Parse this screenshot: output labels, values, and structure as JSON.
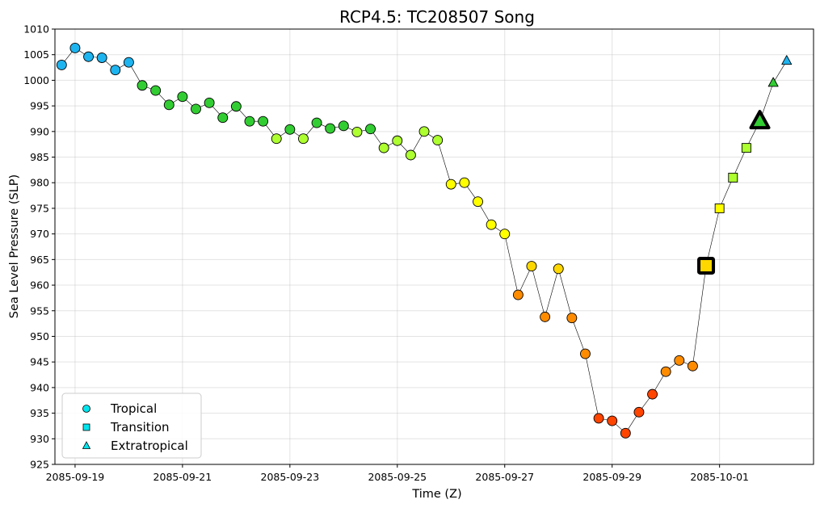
{
  "chart_data": {
    "type": "scatter",
    "title": "RCP4.5: TC208507 Song",
    "xlabel": "Time (Z)",
    "ylabel": "Sea Level Pressure (SLP)",
    "ylim": [
      925,
      1010
    ],
    "xlim": [
      "2085-09-18T15:00",
      "2085-10-02T18:00"
    ],
    "yticks": [
      925,
      930,
      935,
      940,
      945,
      950,
      955,
      960,
      965,
      970,
      975,
      980,
      985,
      990,
      995,
      1000,
      1005,
      1010
    ],
    "xticks": [
      "2085-09-19",
      "2085-09-21",
      "2085-09-23",
      "2085-09-25",
      "2085-09-27",
      "2085-09-29",
      "2085-10-01"
    ],
    "grid": true,
    "legend": {
      "placement": "bottom-left",
      "entries": [
        {
          "label": "Tropical",
          "marker": "circle",
          "color": "#00e5ee"
        },
        {
          "label": "Transition",
          "marker": "square",
          "color": "#00e5ee"
        },
        {
          "label": "Extratropical",
          "marker": "triangle",
          "color": "#00e5ee"
        }
      ]
    },
    "colors": {
      "blue": "#1eb4f0",
      "green": "#32cd32",
      "lightgreen": "#adff2f",
      "yellow": "#ffff00",
      "gold": "#ffd700",
      "orange": "#ff8c00",
      "redorange": "#ff4500"
    },
    "points": [
      {
        "t": "2085-09-18T18:00",
        "slp": 1003.0,
        "phase": "tropical",
        "color": "blue"
      },
      {
        "t": "2085-09-19T00:00",
        "slp": 1006.3,
        "phase": "tropical",
        "color": "blue"
      },
      {
        "t": "2085-09-19T06:00",
        "slp": 1004.6,
        "phase": "tropical",
        "color": "blue"
      },
      {
        "t": "2085-09-19T12:00",
        "slp": 1004.4,
        "phase": "tropical",
        "color": "blue"
      },
      {
        "t": "2085-09-19T18:00",
        "slp": 1002.0,
        "phase": "tropical",
        "color": "blue"
      },
      {
        "t": "2085-09-20T00:00",
        "slp": 1003.5,
        "phase": "tropical",
        "color": "blue"
      },
      {
        "t": "2085-09-20T06:00",
        "slp": 999.0,
        "phase": "tropical",
        "color": "green"
      },
      {
        "t": "2085-09-20T12:00",
        "slp": 998.0,
        "phase": "tropical",
        "color": "green"
      },
      {
        "t": "2085-09-20T18:00",
        "slp": 995.2,
        "phase": "tropical",
        "color": "green"
      },
      {
        "t": "2085-09-21T00:00",
        "slp": 996.8,
        "phase": "tropical",
        "color": "green"
      },
      {
        "t": "2085-09-21T06:00",
        "slp": 994.4,
        "phase": "tropical",
        "color": "green"
      },
      {
        "t": "2085-09-21T12:00",
        "slp": 995.6,
        "phase": "tropical",
        "color": "green"
      },
      {
        "t": "2085-09-21T18:00",
        "slp": 992.7,
        "phase": "tropical",
        "color": "green"
      },
      {
        "t": "2085-09-22T00:00",
        "slp": 994.9,
        "phase": "tropical",
        "color": "green"
      },
      {
        "t": "2085-09-22T06:00",
        "slp": 992.0,
        "phase": "tropical",
        "color": "green"
      },
      {
        "t": "2085-09-22T12:00",
        "slp": 992.0,
        "phase": "tropical",
        "color": "green"
      },
      {
        "t": "2085-09-22T18:00",
        "slp": 988.6,
        "phase": "tropical",
        "color": "lightgreen"
      },
      {
        "t": "2085-09-23T00:00",
        "slp": 990.4,
        "phase": "tropical",
        "color": "green"
      },
      {
        "t": "2085-09-23T06:00",
        "slp": 988.6,
        "phase": "tropical",
        "color": "lightgreen"
      },
      {
        "t": "2085-09-23T12:00",
        "slp": 991.7,
        "phase": "tropical",
        "color": "green"
      },
      {
        "t": "2085-09-23T18:00",
        "slp": 990.6,
        "phase": "tropical",
        "color": "green"
      },
      {
        "t": "2085-09-24T00:00",
        "slp": 991.1,
        "phase": "tropical",
        "color": "green"
      },
      {
        "t": "2085-09-24T06:00",
        "slp": 989.9,
        "phase": "tropical",
        "color": "lightgreen"
      },
      {
        "t": "2085-09-24T12:00",
        "slp": 990.5,
        "phase": "tropical",
        "color": "green"
      },
      {
        "t": "2085-09-24T18:00",
        "slp": 986.8,
        "phase": "tropical",
        "color": "lightgreen"
      },
      {
        "t": "2085-09-25T00:00",
        "slp": 988.2,
        "phase": "tropical",
        "color": "lightgreen"
      },
      {
        "t": "2085-09-25T06:00",
        "slp": 985.4,
        "phase": "tropical",
        "color": "lightgreen"
      },
      {
        "t": "2085-09-25T12:00",
        "slp": 990.0,
        "phase": "tropical",
        "color": "lightgreen"
      },
      {
        "t": "2085-09-25T18:00",
        "slp": 988.3,
        "phase": "tropical",
        "color": "lightgreen"
      },
      {
        "t": "2085-09-26T00:00",
        "slp": 979.7,
        "phase": "tropical",
        "color": "yellow"
      },
      {
        "t": "2085-09-26T06:00",
        "slp": 980.0,
        "phase": "tropical",
        "color": "yellow"
      },
      {
        "t": "2085-09-26T12:00",
        "slp": 976.3,
        "phase": "tropical",
        "color": "yellow"
      },
      {
        "t": "2085-09-26T18:00",
        "slp": 971.8,
        "phase": "tropical",
        "color": "yellow"
      },
      {
        "t": "2085-09-27T00:00",
        "slp": 970.0,
        "phase": "tropical",
        "color": "yellow"
      },
      {
        "t": "2085-09-27T06:00",
        "slp": 958.1,
        "phase": "tropical",
        "color": "orange"
      },
      {
        "t": "2085-09-27T12:00",
        "slp": 963.7,
        "phase": "tropical",
        "color": "gold"
      },
      {
        "t": "2085-09-27T18:00",
        "slp": 953.8,
        "phase": "tropical",
        "color": "orange"
      },
      {
        "t": "2085-09-28T00:00",
        "slp": 963.2,
        "phase": "tropical",
        "color": "gold"
      },
      {
        "t": "2085-09-28T06:00",
        "slp": 953.6,
        "phase": "tropical",
        "color": "orange"
      },
      {
        "t": "2085-09-28T12:00",
        "slp": 946.6,
        "phase": "tropical",
        "color": "orange"
      },
      {
        "t": "2085-09-28T18:00",
        "slp": 934.0,
        "phase": "tropical",
        "color": "redorange"
      },
      {
        "t": "2085-09-29T00:00",
        "slp": 933.5,
        "phase": "tropical",
        "color": "redorange"
      },
      {
        "t": "2085-09-29T06:00",
        "slp": 931.1,
        "phase": "tropical",
        "color": "redorange"
      },
      {
        "t": "2085-09-29T12:00",
        "slp": 935.2,
        "phase": "tropical",
        "color": "redorange"
      },
      {
        "t": "2085-09-29T18:00",
        "slp": 938.7,
        "phase": "tropical",
        "color": "redorange"
      },
      {
        "t": "2085-09-30T00:00",
        "slp": 943.1,
        "phase": "tropical",
        "color": "orange"
      },
      {
        "t": "2085-09-30T06:00",
        "slp": 945.3,
        "phase": "tropical",
        "color": "orange"
      },
      {
        "t": "2085-09-30T12:00",
        "slp": 944.2,
        "phase": "tropical",
        "color": "orange"
      },
      {
        "t": "2085-09-30T18:00",
        "slp": 963.8,
        "phase": "transition",
        "color": "gold",
        "highlight": true
      },
      {
        "t": "2085-10-01T00:00",
        "slp": 975.0,
        "phase": "transition",
        "color": "yellow"
      },
      {
        "t": "2085-10-01T06:00",
        "slp": 981.0,
        "phase": "transition",
        "color": "lightgreen"
      },
      {
        "t": "2085-10-01T12:00",
        "slp": 986.8,
        "phase": "transition",
        "color": "lightgreen"
      },
      {
        "t": "2085-10-01T18:00",
        "slp": 992.0,
        "phase": "extratropical",
        "color": "green",
        "highlight": true
      },
      {
        "t": "2085-10-02T00:00",
        "slp": 999.5,
        "phase": "extratropical",
        "color": "green"
      },
      {
        "t": "2085-10-02T06:00",
        "slp": 1003.8,
        "phase": "extratropical",
        "color": "blue"
      }
    ]
  }
}
